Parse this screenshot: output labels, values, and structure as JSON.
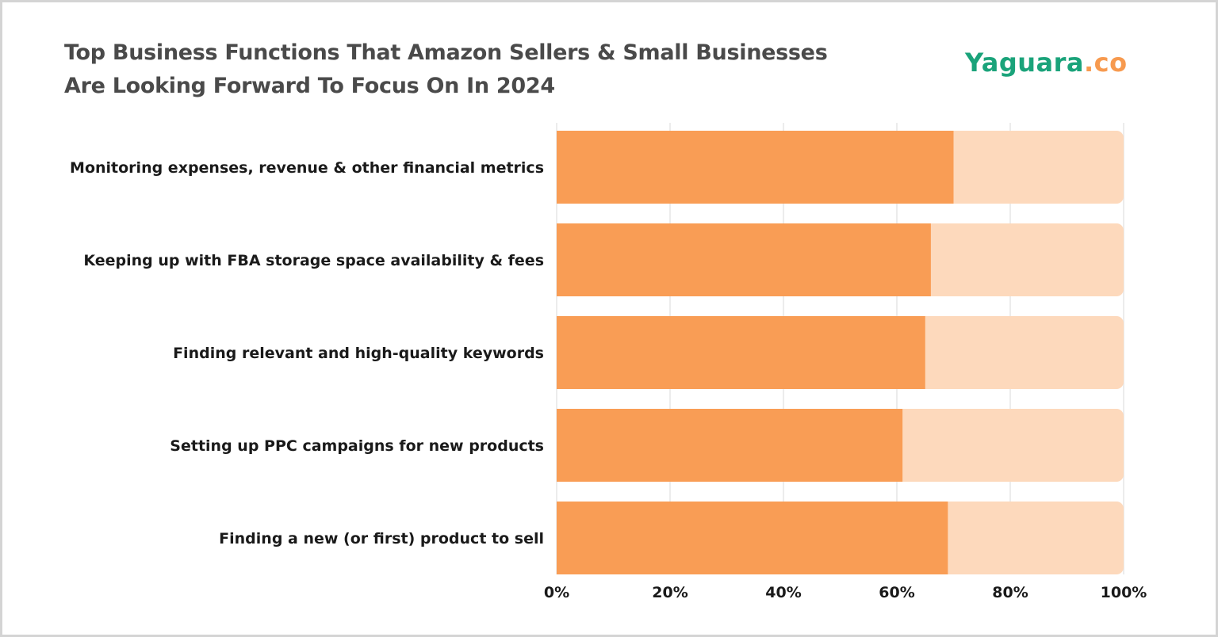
{
  "title_line1": "Top Business Functions That Amazon Sellers & Small Businesses",
  "title_line2": "Are Looking Forward To Focus On In 2024",
  "logo": {
    "main": "Yaguara",
    "suffix": ".co"
  },
  "colors": {
    "bar": "#f99d55",
    "track": "#fdd9bc",
    "grid": "#e6e6e6",
    "logo_green": "#1aa37a",
    "logo_orange": "#f79a4f"
  },
  "chart_data": {
    "type": "bar",
    "orientation": "horizontal",
    "categories": [
      "Monitoring expenses, revenue & other financial metrics",
      "Keeping up with FBA storage space availability & fees",
      "Finding relevant and high-quality keywords",
      "Setting up PPC campaigns for new products",
      "Finding a new (or first) product to sell"
    ],
    "values": [
      70,
      66,
      65,
      61,
      69
    ],
    "xlim": [
      0,
      100
    ],
    "xticks": [
      "0%",
      "20%",
      "40%",
      "60%",
      "80%",
      "100%"
    ],
    "grid": true,
    "background_track": 100
  }
}
